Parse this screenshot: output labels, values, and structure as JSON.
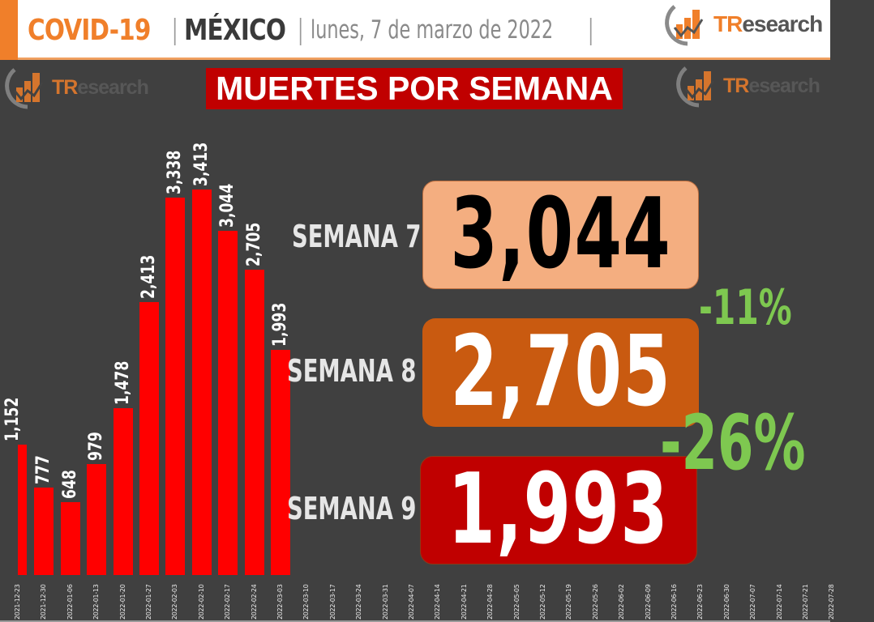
{
  "header": {
    "topic": "COVID-19",
    "separator": "|",
    "country": "MÉXICO",
    "date": "lunes, 7 de marzo de 2022",
    "trailing_separator": "|"
  },
  "brand": {
    "name_tr": "TR",
    "name_rest": "esearch",
    "accent_color": "#f07f2a"
  },
  "banner": {
    "title": "MUERTES POR SEMANA",
    "color": "#c00000"
  },
  "weeks": [
    {
      "label": "SEMANA 7",
      "value": "3,044",
      "bg": "#f4ae80",
      "fg": "#000000"
    },
    {
      "label": "SEMANA 8",
      "value": "2,705",
      "bg": "#c95a10",
      "fg": "#ffffff"
    },
    {
      "label": "SEMANA 9",
      "value": "1,993",
      "bg": "#c00000",
      "fg": "#ffffff"
    }
  ],
  "changes": [
    {
      "label": "-11%",
      "from": "SEMANA 7",
      "to": "SEMANA 8",
      "color": "#7ec850"
    },
    {
      "label": "-26%",
      "from": "SEMANA 8",
      "to": "SEMANA 9",
      "color": "#7ec850"
    }
  ],
  "chart_data": {
    "type": "bar",
    "title": "MUERTES POR SEMANA",
    "xlabel": "",
    "ylabel": "",
    "grid": false,
    "legend": null,
    "bar_color": "#ff0000",
    "ylim": [
      0,
      3413
    ],
    "categories": [
      "2021-12-23",
      "2021-12-30",
      "2022-01-06",
      "2022-01-13",
      "2022-01-20",
      "2022-01-27",
      "2022-02-03",
      "2022-02-10",
      "2022-02-17",
      "2022-02-24",
      "2022-03-03",
      "2022-03-10",
      "2022-03-17",
      "2022-03-24",
      "2022-03-31",
      "2022-04-07",
      "2022-04-14",
      "2022-04-21",
      "2022-04-28",
      "2022-05-05",
      "2022-05-12",
      "2022-05-19",
      "2022-05-26",
      "2022-06-02",
      "2022-06-09",
      "2022-06-16",
      "2022-06-23",
      "2022-06-30",
      "2022-07-07",
      "2022-07-14",
      "2022-07-21",
      "2022-07-28"
    ],
    "values": [
      1152,
      777,
      648,
      979,
      1478,
      2413,
      3338,
      3413,
      3044,
      2705,
      1993,
      null,
      null,
      null,
      null,
      null,
      null,
      null,
      null,
      null,
      null,
      null,
      null,
      null,
      null,
      null,
      null,
      null,
      null,
      null,
      null,
      null
    ],
    "value_labels": [
      "1,152",
      "777",
      "648",
      "979",
      "1,478",
      "2,413",
      "3,338",
      "3,413",
      "3,044",
      "2,705",
      "1,993"
    ]
  }
}
